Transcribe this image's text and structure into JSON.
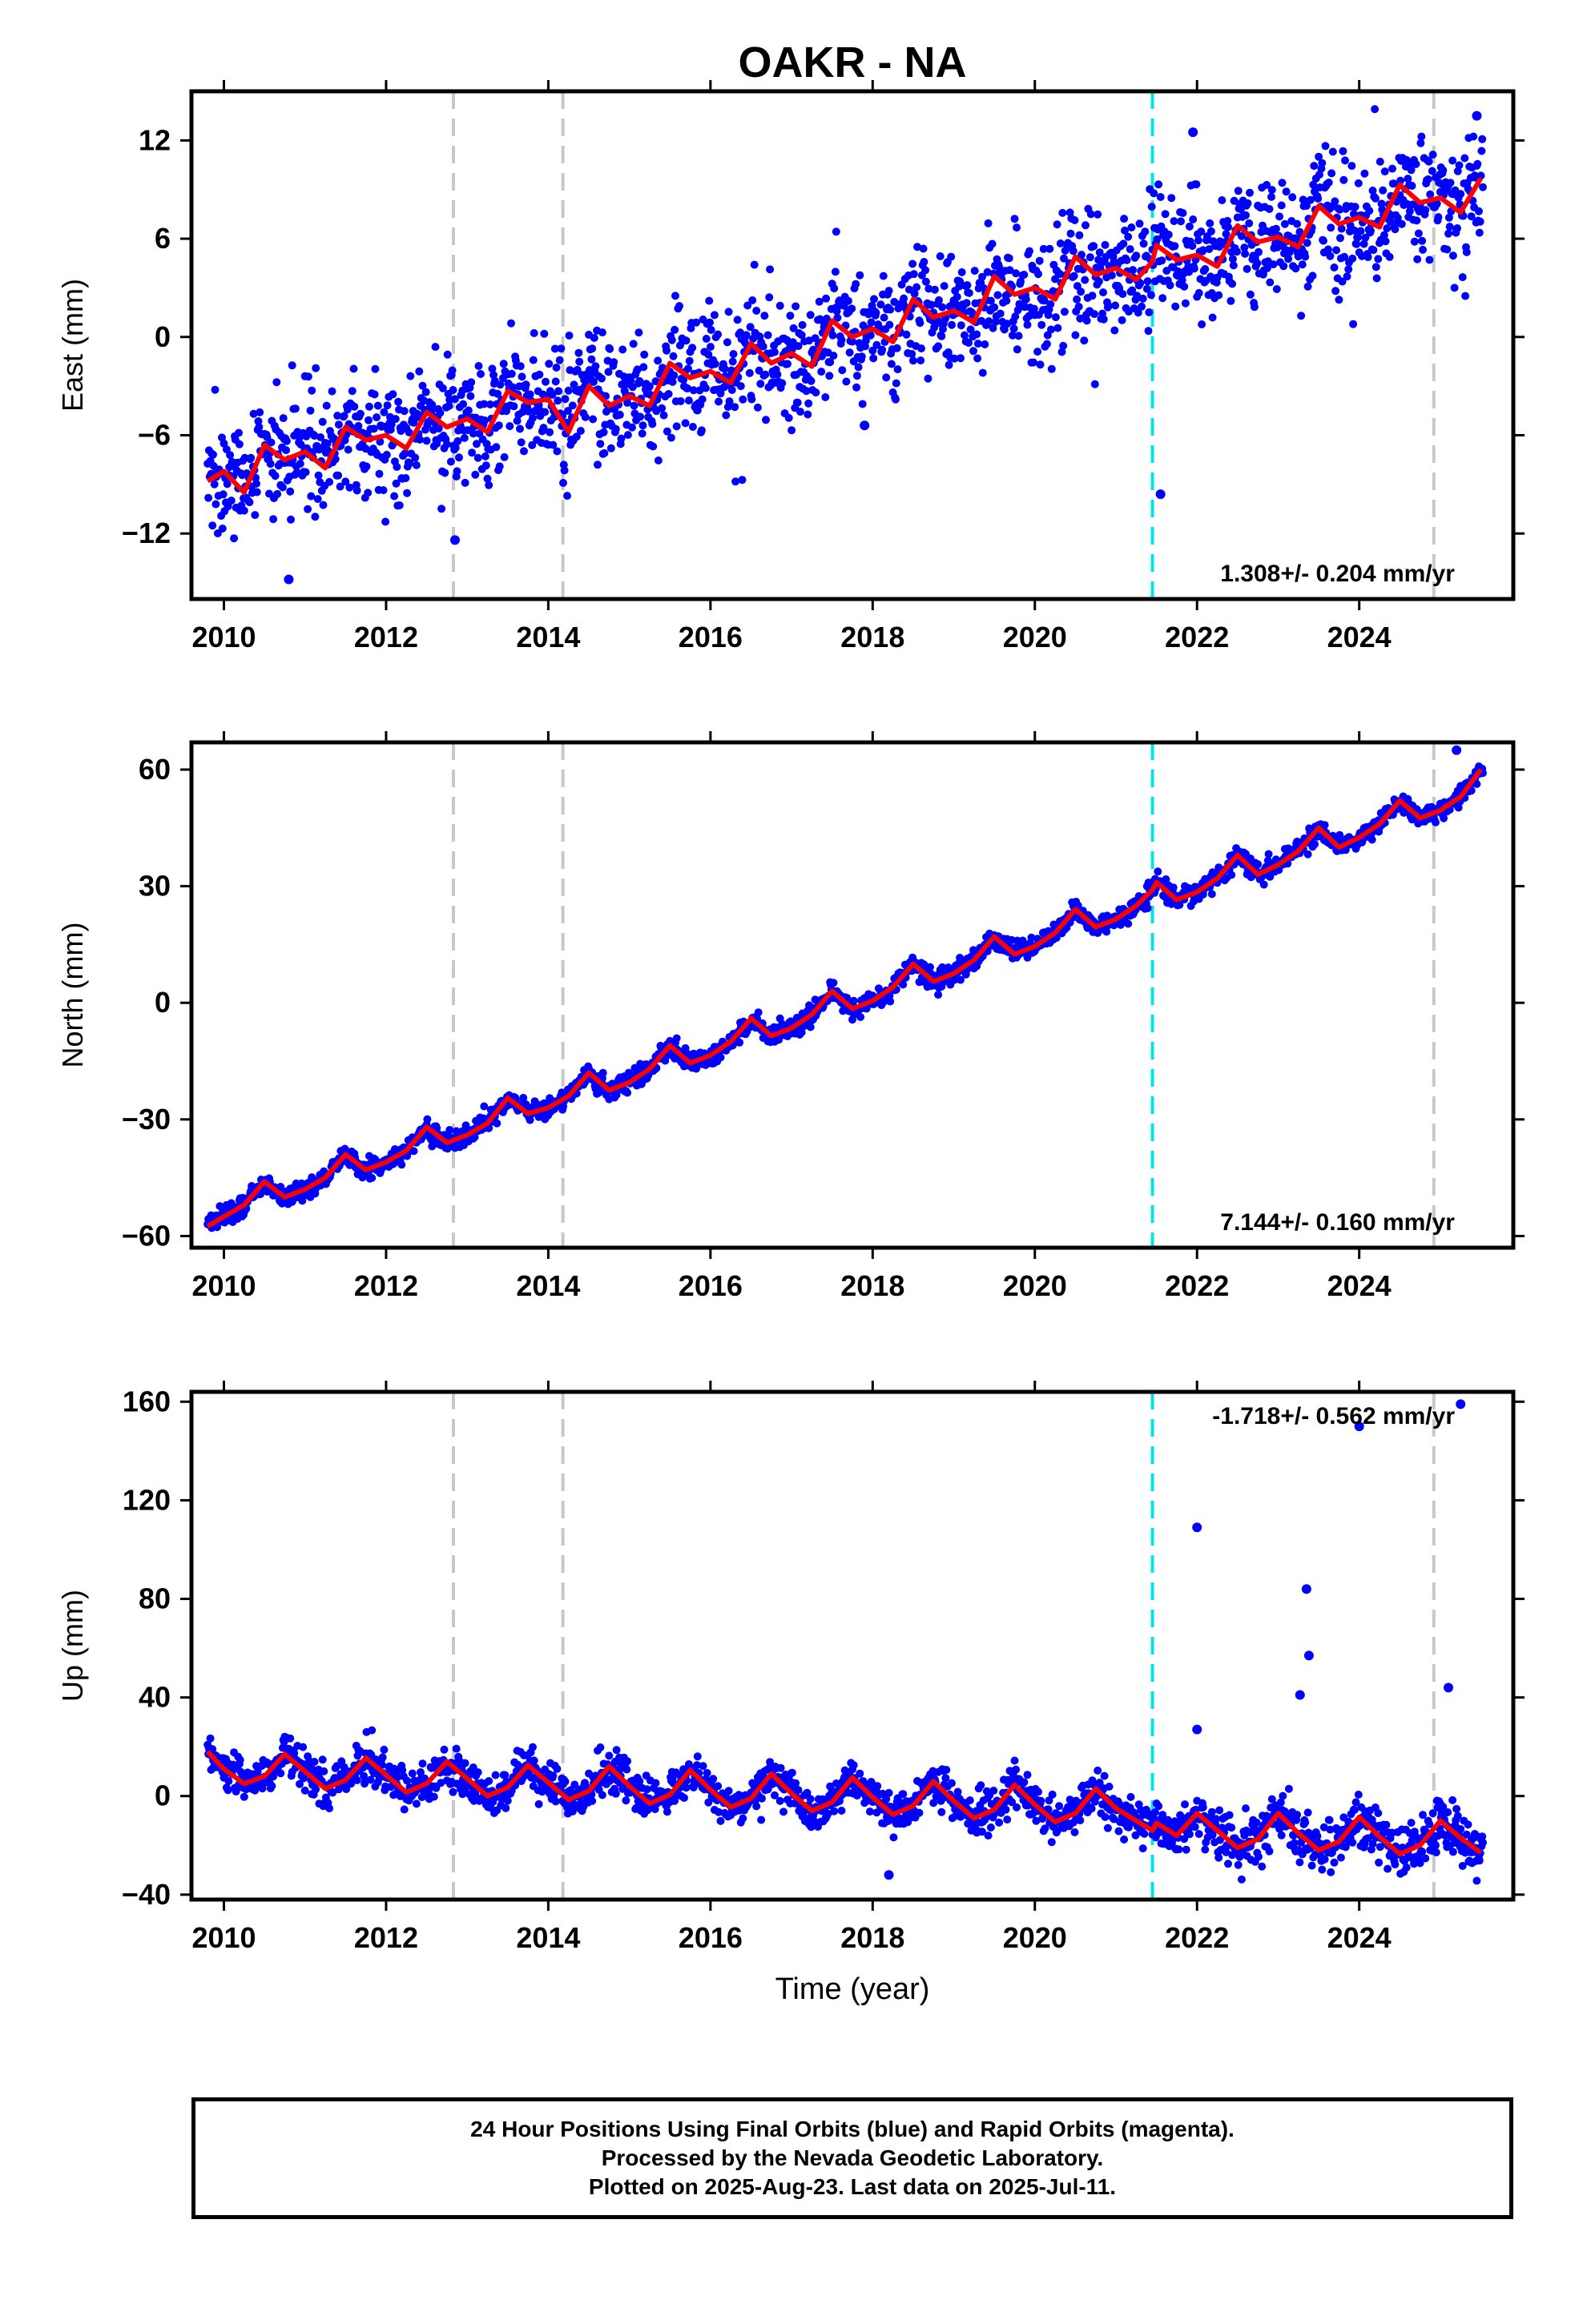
{
  "title": "OAKR - NA",
  "x_axis_label": "Time (year)",
  "footer": {
    "line1": "24 Hour Positions Using Final Orbits (blue) and Rapid Orbits (magenta).",
    "line2": "Processed by the Nevada Geodetic Laboratory.",
    "line3": "Plotted on 2025-Aug-23. Last data on 2025-Jul-11."
  },
  "colors": {
    "final_orbits": "#0000ff",
    "model_fit": "#ff0000",
    "equipment_change": "#c8c8c8",
    "earthquake": "#00e5e5",
    "axes": "#000000"
  },
  "chart_data": [
    {
      "type": "scatter",
      "panel": "east",
      "ylabel": "East (mm)",
      "xlim": [
        2009.6,
        2025.9
      ],
      "ylim": [
        -16,
        15
      ],
      "yticks": [
        -12,
        -6,
        0,
        6,
        12
      ],
      "xticks": [
        2010,
        2012,
        2014,
        2016,
        2018,
        2020,
        2022,
        2024
      ],
      "grid": false,
      "rate_annotation": "1.308+/- 0.204 mm/yr",
      "annotation_position": "bottom-right",
      "data_start": 2009.8,
      "data_end": 2025.53,
      "trend": {
        "y2010": -8.8,
        "rate": 1.13,
        "annual_amp": 1.0,
        "annual_phase": 0.5,
        "noise": 1.9
      },
      "outliers": [
        {
          "x": 2012.85,
          "y": -12.4
        },
        {
          "x": 2021.55,
          "y": -9.6
        },
        {
          "x": 2017.9,
          "y": -5.4
        },
        {
          "x": 2025.45,
          "y": 13.5
        },
        {
          "x": 2021.95,
          "y": 12.5
        },
        {
          "x": 2010.8,
          "y": -14.8
        }
      ],
      "vlines_equipment": [
        2012.83,
        2014.18,
        2024.92
      ],
      "vlines_earthquake": [
        2021.45
      ],
      "series": [
        {
          "name": "",
          "role": "model_fit",
          "x": [
            2009.8,
            2010.0,
            2010.25,
            2010.5,
            2010.75,
            2011.0,
            2011.25,
            2011.5,
            2011.75,
            2012.0,
            2012.25,
            2012.5,
            2012.75,
            2013.0,
            2013.25,
            2013.5,
            2013.75,
            2014.0,
            2014.25,
            2014.5,
            2014.75,
            2015.0,
            2015.25,
            2015.5,
            2015.75,
            2016.0,
            2016.25,
            2016.5,
            2016.75,
            2017.0,
            2017.25,
            2017.5,
            2017.75,
            2018.0,
            2018.25,
            2018.5,
            2018.75,
            2019.0,
            2019.25,
            2019.5,
            2019.75,
            2020.0,
            2020.25,
            2020.5,
            2020.75,
            2021.0,
            2021.25,
            2021.45,
            2021.5,
            2021.75,
            2022.0,
            2022.25,
            2022.5,
            2022.75,
            2023.0,
            2023.25,
            2023.5,
            2023.75,
            2024.0,
            2024.25,
            2024.5,
            2024.75,
            2025.0,
            2025.25,
            2025.5
          ],
          "y": [
            -8.8,
            -8.2,
            -9.5,
            -6.6,
            -7.5,
            -7.0,
            -8.0,
            -5.5,
            -6.3,
            -6.0,
            -6.8,
            -4.6,
            -5.5,
            -5.0,
            -5.8,
            -3.3,
            -4.0,
            -3.8,
            -5.8,
            -3.0,
            -4.2,
            -3.6,
            -4.2,
            -1.6,
            -2.5,
            -2.1,
            -2.8,
            -0.4,
            -1.6,
            -1.0,
            -1.8,
            1.0,
            0.0,
            0.5,
            -0.3,
            2.3,
            1.2,
            1.6,
            0.9,
            3.7,
            2.6,
            3.0,
            2.3,
            4.9,
            3.8,
            4.2,
            3.5,
            4.6,
            5.6,
            4.7,
            5.0,
            4.3,
            6.8,
            5.8,
            6.1,
            5.5,
            8.0,
            6.9,
            7.3,
            6.7,
            9.3,
            8.2,
            8.5,
            7.6,
            9.7
          ]
        }
      ]
    },
    {
      "type": "scatter",
      "panel": "north",
      "ylabel": "North (mm)",
      "xlim": [
        2009.6,
        2025.9
      ],
      "ylim": [
        -63,
        67
      ],
      "yticks": [
        -60,
        -30,
        0,
        30,
        60
      ],
      "xticks": [
        2010,
        2012,
        2014,
        2016,
        2018,
        2020,
        2022,
        2024
      ],
      "grid": false,
      "rate_annotation": "7.144+/- 0.160 mm/yr",
      "annotation_position": "bottom-right",
      "data_start": 2009.8,
      "data_end": 2025.53,
      "trend": {
        "y2010": -55.5,
        "rate": 6.9,
        "annual_amp": 2.8,
        "annual_phase": 0.5,
        "noise": 1.3
      },
      "outliers": [
        {
          "x": 2025.2,
          "y": 65
        }
      ],
      "vlines_equipment": [
        2012.83,
        2014.18,
        2024.92
      ],
      "vlines_earthquake": [
        2021.45
      ],
      "series": [
        {
          "name": "",
          "role": "model_fit",
          "x": [
            2009.8,
            2010.0,
            2010.25,
            2010.5,
            2010.75,
            2011.0,
            2011.25,
            2011.5,
            2011.75,
            2012.0,
            2012.25,
            2012.5,
            2012.75,
            2013.0,
            2013.25,
            2013.5,
            2013.75,
            2014.0,
            2014.25,
            2014.5,
            2014.75,
            2015.0,
            2015.25,
            2015.5,
            2015.75,
            2016.0,
            2016.25,
            2016.5,
            2016.75,
            2017.0,
            2017.25,
            2017.5,
            2017.75,
            2018.0,
            2018.25,
            2018.5,
            2018.75,
            2019.0,
            2019.25,
            2019.5,
            2019.75,
            2020.0,
            2020.25,
            2020.5,
            2020.75,
            2021.0,
            2021.25,
            2021.45,
            2021.5,
            2021.75,
            2022.0,
            2022.25,
            2022.5,
            2022.75,
            2023.0,
            2023.25,
            2023.5,
            2023.75,
            2024.0,
            2024.25,
            2024.5,
            2024.75,
            2025.0,
            2025.25,
            2025.5
          ],
          "y": [
            -57.5,
            -55.0,
            -52.0,
            -46.0,
            -50.0,
            -48.0,
            -45.0,
            -39.0,
            -43.0,
            -41.0,
            -38.0,
            -32.0,
            -36.0,
            -34.0,
            -31.0,
            -24.5,
            -28.5,
            -27.0,
            -24.0,
            -18.0,
            -22.5,
            -20.5,
            -17.0,
            -11.0,
            -15.5,
            -13.5,
            -10.0,
            -4.0,
            -8.5,
            -6.5,
            -3.0,
            3.0,
            -1.5,
            0.5,
            4.0,
            10.0,
            5.5,
            7.5,
            11.0,
            17.0,
            12.5,
            14.5,
            18.0,
            24.0,
            19.5,
            21.5,
            25.0,
            29.0,
            31.0,
            26.5,
            28.5,
            32.0,
            38.0,
            33.0,
            35.5,
            39.0,
            45.0,
            40.0,
            42.5,
            46.0,
            52.0,
            47.5,
            49.5,
            53.0,
            60.0
          ]
        }
      ]
    },
    {
      "type": "scatter",
      "panel": "up",
      "ylabel": "Up (mm)",
      "xlim": [
        2009.6,
        2025.9
      ],
      "ylim": [
        -42,
        164
      ],
      "yticks": [
        -40,
        0,
        40,
        80,
        120,
        160
      ],
      "xticks": [
        2010,
        2012,
        2014,
        2016,
        2018,
        2020,
        2022,
        2024
      ],
      "xlabel": "Time (year)",
      "grid": false,
      "rate_annotation": "-1.718+/- 0.562 mm/yr",
      "annotation_position": "top-right",
      "data_start": 2009.8,
      "data_end": 2025.53,
      "trend": {
        "y2010": 11.5,
        "rate": -1.85,
        "annual_amp": 6.5,
        "annual_phase": 0.7,
        "noise": 4.0
      },
      "outliers": [
        {
          "x": 2025.25,
          "y": 159
        },
        {
          "x": 2024.0,
          "y": 150
        },
        {
          "x": 2022.0,
          "y": 109
        },
        {
          "x": 2023.35,
          "y": 84
        },
        {
          "x": 2023.38,
          "y": 57
        },
        {
          "x": 2025.1,
          "y": 44
        },
        {
          "x": 2023.27,
          "y": 41
        },
        {
          "x": 2022.0,
          "y": 27
        },
        {
          "x": 2018.2,
          "y": -32
        }
      ],
      "vlines_equipment": [
        2012.83,
        2014.18,
        2024.92
      ],
      "vlines_earthquake": [
        2021.45
      ],
      "series": [
        {
          "name": "",
          "role": "model_fit",
          "x": [
            2009.8,
            2010.0,
            2010.25,
            2010.5,
            2010.75,
            2011.0,
            2011.25,
            2011.5,
            2011.75,
            2012.0,
            2012.25,
            2012.5,
            2012.75,
            2013.0,
            2013.25,
            2013.5,
            2013.75,
            2014.0,
            2014.25,
            2014.5,
            2014.75,
            2015.0,
            2015.25,
            2015.5,
            2015.75,
            2016.0,
            2016.25,
            2016.5,
            2016.75,
            2017.0,
            2017.25,
            2017.5,
            2017.75,
            2018.0,
            2018.25,
            2018.5,
            2018.75,
            2019.0,
            2019.25,
            2019.5,
            2019.75,
            2020.0,
            2020.25,
            2020.5,
            2020.75,
            2021.0,
            2021.25,
            2021.45,
            2021.5,
            2021.75,
            2022.0,
            2022.25,
            2022.5,
            2022.75,
            2023.0,
            2023.25,
            2023.5,
            2023.75,
            2024.0,
            2024.25,
            2024.5,
            2024.75,
            2025.0,
            2025.25,
            2025.5
          ],
          "y": [
            18.0,
            11.0,
            5.0,
            8.0,
            17.0,
            10.0,
            3.0,
            6.5,
            15.5,
            8.5,
            1.5,
            5.0,
            14.0,
            7.0,
            0.0,
            3.5,
            12.5,
            5.5,
            -1.5,
            2.0,
            12.0,
            4.0,
            -3.0,
            0.5,
            10.5,
            2.5,
            -4.5,
            -1.0,
            9.0,
            1.0,
            -6.0,
            -2.5,
            7.5,
            -0.5,
            -7.5,
            -4.0,
            6.0,
            -2.0,
            -9.0,
            -5.5,
            4.5,
            -3.5,
            -10.5,
            -7.0,
            3.0,
            -5.0,
            -10.0,
            -14.0,
            -11.0,
            -16.0,
            -7.0,
            -14.0,
            -21.0,
            -17.5,
            -7.0,
            -15.0,
            -22.0,
            -18.5,
            -8.5,
            -16.5,
            -23.5,
            -20.0,
            -10.0,
            -17.0,
            -23.0
          ]
        }
      ]
    }
  ]
}
